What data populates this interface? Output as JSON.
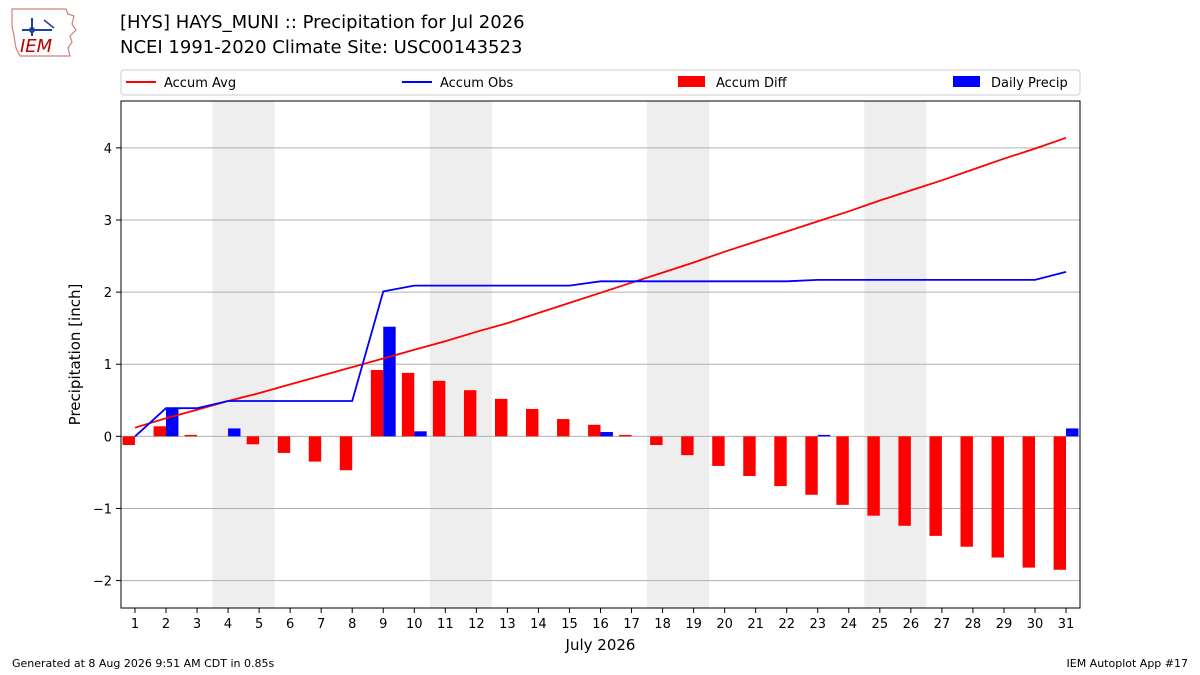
{
  "header": {
    "title": "[HYS] HAYS_MUNI :: Precipitation for Jul 2026",
    "subtitle": "NCEI 1991-2020 Climate Site: USC00143523",
    "logo_text": "IEM"
  },
  "footer": {
    "left": "Generated at 8 Aug 2026 9:51 AM CDT in 0.85s",
    "right": "IEM Autoplot App #17"
  },
  "colors": {
    "avg": "#ff0000",
    "obs": "#0000ff",
    "diff": "#ff0000",
    "daily": "#0000ff",
    "weekend": "#eeeeee",
    "grid": "#b0b0b0"
  },
  "chart_data": {
    "type": "bar",
    "xlabel": "July 2026",
    "ylabel": "Precipitation [inch]",
    "ylim": [
      -2.38,
      4.65
    ],
    "yticks": [
      -2,
      -1,
      0,
      1,
      2,
      3,
      4
    ],
    "ytick_labels": [
      "−2",
      "−1",
      "0",
      "1",
      "2",
      "3",
      "4"
    ],
    "grid": "horizontal",
    "legend": "top",
    "x": [
      1,
      2,
      3,
      4,
      5,
      6,
      7,
      8,
      9,
      10,
      11,
      12,
      13,
      14,
      15,
      16,
      17,
      18,
      19,
      20,
      21,
      22,
      23,
      24,
      25,
      26,
      27,
      28,
      29,
      30,
      31
    ],
    "weekend_spans": [
      [
        4,
        5
      ],
      [
        11,
        12
      ],
      [
        18,
        19
      ],
      [
        25,
        26
      ]
    ],
    "series": [
      {
        "name": "Accum Avg",
        "kind": "line",
        "values": [
          0.12,
          0.25,
          0.37,
          0.49,
          0.6,
          0.72,
          0.84,
          0.96,
          1.08,
          1.2,
          1.32,
          1.45,
          1.57,
          1.71,
          1.85,
          1.99,
          2.13,
          2.27,
          2.41,
          2.56,
          2.7,
          2.84,
          2.98,
          3.12,
          3.27,
          3.41,
          3.55,
          3.7,
          3.85,
          3.99,
          4.14
        ]
      },
      {
        "name": "Accum Obs",
        "kind": "line",
        "values": [
          0.0,
          0.39,
          0.39,
          0.49,
          0.49,
          0.49,
          0.49,
          0.49,
          2.01,
          2.09,
          2.09,
          2.09,
          2.09,
          2.09,
          2.09,
          2.15,
          2.15,
          2.15,
          2.15,
          2.15,
          2.15,
          2.15,
          2.17,
          2.17,
          2.17,
          2.17,
          2.17,
          2.17,
          2.17,
          2.17,
          2.28
        ]
      },
      {
        "name": "Accum Diff",
        "kind": "bar",
        "values": [
          -0.12,
          0.14,
          0.02,
          0.0,
          -0.11,
          -0.23,
          -0.35,
          -0.47,
          0.92,
          0.88,
          0.77,
          0.64,
          0.52,
          0.38,
          0.24,
          0.16,
          0.02,
          -0.12,
          -0.26,
          -0.41,
          -0.55,
          -0.69,
          -0.81,
          -0.95,
          -1.1,
          -1.24,
          -1.38,
          -1.53,
          -1.68,
          -1.82,
          -1.85
        ]
      },
      {
        "name": "Daily Precip",
        "kind": "bar",
        "values": [
          0.0,
          0.39,
          0.0,
          0.11,
          0.0,
          0.0,
          0.0,
          0.0,
          1.52,
          0.07,
          0.0,
          0.0,
          0.0,
          0.0,
          0.0,
          0.06,
          0.0,
          0.0,
          0.0,
          0.0,
          0.0,
          0.0,
          0.02,
          0.0,
          0.0,
          0.0,
          0.0,
          0.0,
          0.0,
          0.0,
          0.11
        ]
      }
    ]
  }
}
